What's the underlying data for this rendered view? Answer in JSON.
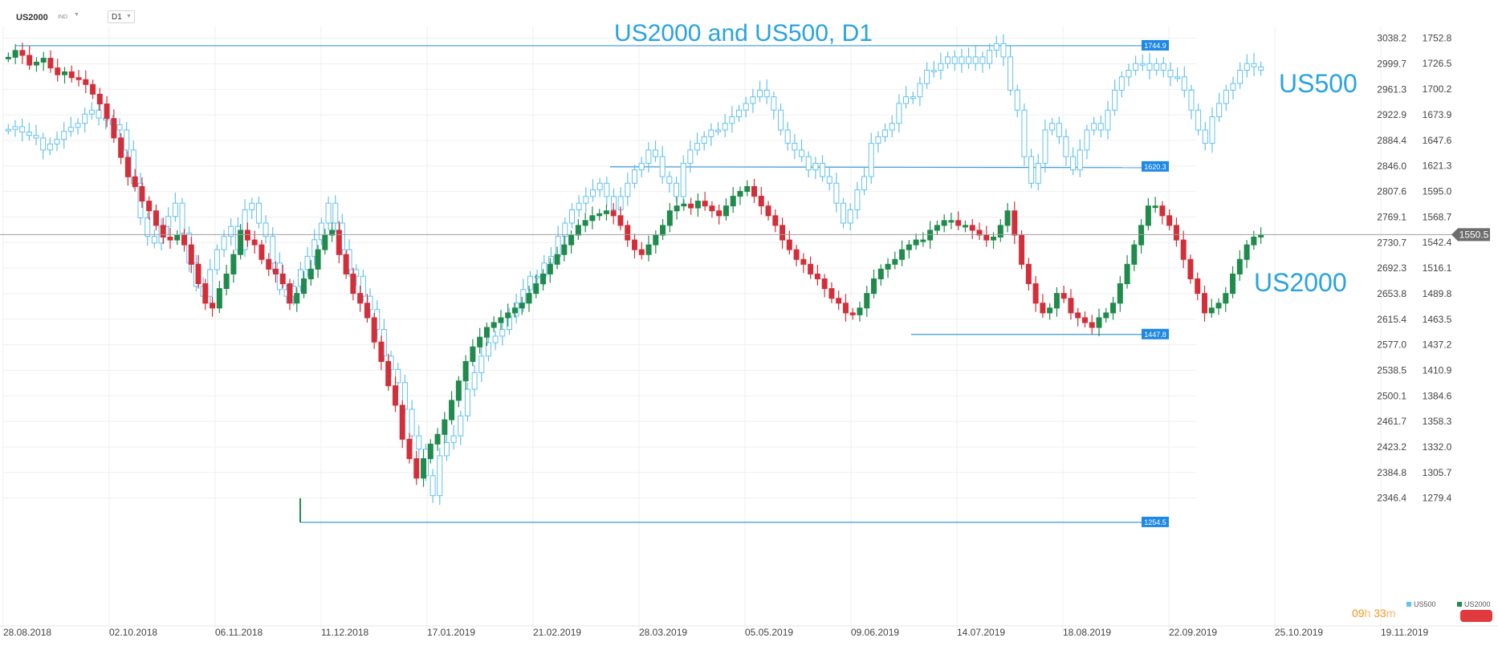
{
  "header": {
    "symbol": "US2000",
    "asset_class": "IND",
    "timeframe": "D1"
  },
  "countdown": {
    "hours": "09",
    "h": "h",
    "minutes": "33",
    "m": "m"
  },
  "colors": {
    "us500": "#63c1ef",
    "us2000_up": "#1f8b4c",
    "us2000_down": "#d32f3a",
    "level_line": "#3a9ad9",
    "level_tag": "#1e88e5",
    "current_price_line": "#9e9e9e",
    "current_price_tag": "#6d6d6d",
    "grid": "#efefef"
  },
  "chart_data": {
    "type": "candlestick",
    "title": "US2000 and US500, D1",
    "x_axis": {
      "tick_labels": [
        "28.08.2018",
        "02.10.2018",
        "06.11.2018",
        "11.12.2018",
        "17.01.2019",
        "21.02.2019",
        "28.03.2019",
        "05.05.2019",
        "09.06.2019",
        "14.07.2019",
        "18.08.2019",
        "22.09.2019",
        "25.10.2019",
        "19.11.2019"
      ]
    },
    "y_axis_left": {
      "series": "US500",
      "range": [
        2323.0,
        3057.0
      ],
      "tick_labels": [
        "3038.2",
        "2999.7",
        "2961.3",
        "2922.9",
        "2884.4",
        "2846.0",
        "2807.6",
        "2769.1",
        "2730.7",
        "2692.3",
        "2653.8",
        "2615.4",
        "2577.0",
        "2538.5",
        "2500.1",
        "2461.7",
        "2423.2",
        "2384.8",
        "2346.4"
      ]
    },
    "y_axis_right": {
      "series": "US2000",
      "range": [
        1263.5,
        1765.5
      ],
      "tick_labels": [
        "1752.8",
        "1726.5",
        "1700.2",
        "1673.9",
        "1647.6",
        "1621.3",
        "1595.0",
        "1568.7",
        "1542.4",
        "1516.1",
        "1489.8",
        "1463.5",
        "1437.2",
        "1410.9",
        "1384.6",
        "1358.3",
        "1332.0",
        "1305.7",
        "1279.4"
      ]
    },
    "series_labels": [
      {
        "name": "US500",
        "text": "US500"
      },
      {
        "name": "US2000",
        "text": "US2000"
      }
    ],
    "legend": [
      {
        "name": "US500",
        "text": "US500"
      },
      {
        "name": "US2000",
        "text": "US2000"
      }
    ],
    "current_price": {
      "series": "US2000",
      "value": 1550.5,
      "label": "1550.5"
    },
    "levels": [
      {
        "value": 1744.9,
        "label": "1744.9"
      },
      {
        "value": 1620.3,
        "label": "1620.3"
      },
      {
        "value": 1447.8,
        "label": "1447.8"
      },
      {
        "value": 1254.5,
        "label": "1254.5"
      }
    ],
    "series": [
      {
        "name": "US500",
        "approx_closes": [
          2901,
          2905,
          2897,
          2892,
          2888,
          2870,
          2879,
          2886,
          2898,
          2904,
          2910,
          2924,
          2930,
          2918,
          2915,
          2908,
          2900,
          2870,
          2820,
          2768,
          2740,
          2730,
          2755,
          2770,
          2790,
          2745,
          2700,
          2665,
          2650,
          2690,
          2720,
          2740,
          2755,
          2720,
          2780,
          2790,
          2760,
          2740,
          2700,
          2660,
          2650,
          2665,
          2690,
          2710,
          2735,
          2760,
          2790,
          2760,
          2720,
          2690,
          2680,
          2650,
          2630,
          2600,
          2560,
          2540,
          2520,
          2480,
          2440,
          2420,
          2380,
          2350,
          2410,
          2430,
          2440,
          2470,
          2510,
          2535,
          2560,
          2580,
          2590,
          2600,
          2620,
          2640,
          2660,
          2680,
          2680,
          2700,
          2710,
          2740,
          2760,
          2780,
          2790,
          2800,
          2810,
          2820,
          2800,
          2780,
          2800,
          2820,
          2840,
          2850,
          2870,
          2860,
          2830,
          2820,
          2800,
          2850,
          2870,
          2880,
          2890,
          2900,
          2900,
          2910,
          2920,
          2930,
          2940,
          2950,
          2960,
          2950,
          2930,
          2900,
          2880,
          2870,
          2860,
          2840,
          2850,
          2830,
          2820,
          2790,
          2760,
          2780,
          2810,
          2830,
          2880,
          2890,
          2900,
          2910,
          2940,
          2950,
          2950,
          2970,
          2990,
          2990,
          3000,
          3010,
          3000,
          3010,
          3000,
          3010,
          3000,
          3020,
          3030,
          3010,
          2960,
          2930,
          2860,
          2820,
          2850,
          2900,
          2910,
          2890,
          2860,
          2840,
          2870,
          2900,
          2910,
          2900,
          2930,
          2960,
          2980,
          2990,
          3000,
          3000,
          2990,
          3000,
          2990,
          2980,
          2980,
          2960,
          2930,
          2900,
          2880,
          2920,
          2940,
          2960,
          2970,
          2990,
          3000,
          2995,
          2990
        ]
      },
      {
        "name": "US2000",
        "approx_closes": [
          1733,
          1740,
          1735,
          1725,
          1728,
          1732,
          1722,
          1715,
          1718,
          1712,
          1710,
          1705,
          1695,
          1685,
          1670,
          1650,
          1630,
          1610,
          1600,
          1585,
          1575,
          1560,
          1548,
          1545,
          1550,
          1540,
          1520,
          1500,
          1480,
          1475,
          1495,
          1510,
          1530,
          1555,
          1545,
          1540,
          1525,
          1515,
          1510,
          1500,
          1480,
          1490,
          1505,
          1515,
          1535,
          1550,
          1555,
          1530,
          1510,
          1490,
          1480,
          1465,
          1440,
          1420,
          1395,
          1375,
          1340,
          1320,
          1300,
          1320,
          1335,
          1345,
          1360,
          1380,
          1400,
          1420,
          1435,
          1445,
          1455,
          1460,
          1465,
          1470,
          1475,
          1480,
          1490,
          1500,
          1510,
          1520,
          1530,
          1540,
          1550,
          1560,
          1565,
          1570,
          1572,
          1575,
          1570,
          1560,
          1545,
          1535,
          1530,
          1540,
          1550,
          1560,
          1575,
          1580,
          1582,
          1578,
          1585,
          1580,
          1575,
          1570,
          1580,
          1590,
          1595,
          1600,
          1590,
          1580,
          1570,
          1560,
          1545,
          1535,
          1525,
          1520,
          1510,
          1505,
          1495,
          1485,
          1480,
          1470,
          1468,
          1475,
          1490,
          1505,
          1515,
          1520,
          1525,
          1535,
          1540,
          1545,
          1545,
          1555,
          1560,
          1565,
          1565,
          1560,
          1560,
          1555,
          1550,
          1545,
          1548,
          1560,
          1575,
          1550,
          1520,
          1500,
          1480,
          1470,
          1475,
          1490,
          1485,
          1470,
          1465,
          1460,
          1455,
          1465,
          1470,
          1480,
          1500,
          1520,
          1540,
          1560,
          1580,
          1580,
          1570,
          1560,
          1545,
          1525,
          1505,
          1490,
          1470,
          1475,
          1480,
          1490,
          1510,
          1525,
          1540,
          1548,
          1550
        ]
      }
    ]
  }
}
